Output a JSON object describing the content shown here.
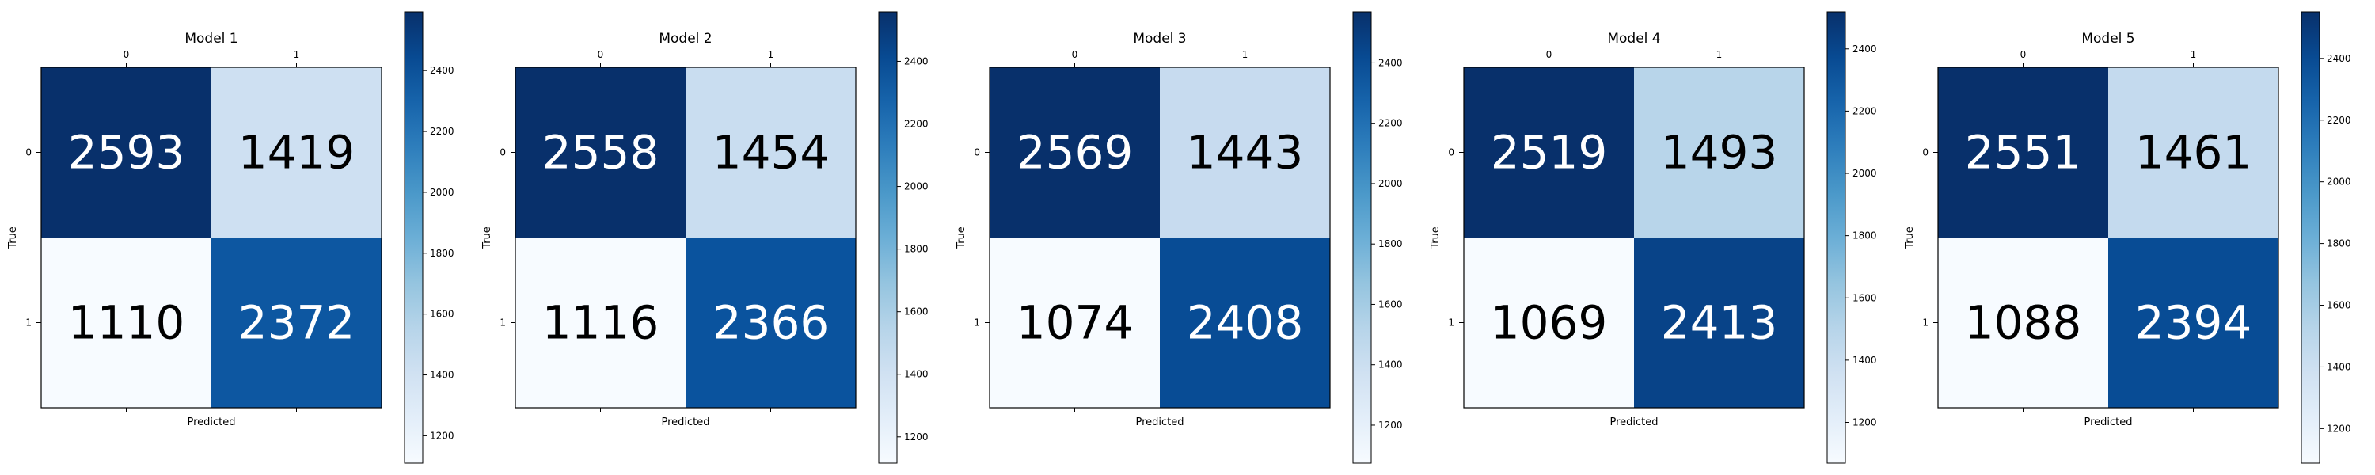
{
  "chart_data": [
    {
      "type": "heatmap",
      "title": "Model 1",
      "xlabel": "Predicted",
      "ylabel": "True",
      "x_tick_labels": [
        "0",
        "1"
      ],
      "y_tick_labels": [
        "0",
        "1"
      ],
      "values": [
        [
          2593,
          1419
        ],
        [
          1110,
          2372
        ]
      ],
      "colormap": "Blues",
      "colorbar_range": [
        1110,
        2593
      ],
      "colorbar_ticks": [
        1200,
        1400,
        1600,
        1800,
        2000,
        2200,
        2400
      ],
      "x_ticks_position": "top"
    },
    {
      "type": "heatmap",
      "title": "Model 2",
      "xlabel": "Predicted",
      "ylabel": "True",
      "x_tick_labels": [
        "0",
        "1"
      ],
      "y_tick_labels": [
        "0",
        "1"
      ],
      "values": [
        [
          2558,
          1454
        ],
        [
          1116,
          2366
        ]
      ],
      "colormap": "Blues",
      "colorbar_range": [
        1116,
        2558
      ],
      "colorbar_ticks": [
        1200,
        1400,
        1600,
        1800,
        2000,
        2200,
        2400
      ],
      "x_ticks_position": "top"
    },
    {
      "type": "heatmap",
      "title": "Model 3",
      "xlabel": "Predicted",
      "ylabel": "True",
      "x_tick_labels": [
        "0",
        "1"
      ],
      "y_tick_labels": [
        "0",
        "1"
      ],
      "values": [
        [
          2569,
          1443
        ],
        [
          1074,
          2408
        ]
      ],
      "colormap": "Blues",
      "colorbar_range": [
        1074,
        2569
      ],
      "colorbar_ticks": [
        1200,
        1400,
        1600,
        1800,
        2000,
        2200,
        2400
      ],
      "x_ticks_position": "top"
    },
    {
      "type": "heatmap",
      "title": "Model 4",
      "xlabel": "Predicted",
      "ylabel": "True",
      "x_tick_labels": [
        "0",
        "1"
      ],
      "y_tick_labels": [
        "0",
        "1"
      ],
      "values": [
        [
          2519,
          1493
        ],
        [
          1069,
          2413
        ]
      ],
      "colormap": "Blues",
      "colorbar_range": [
        1069,
        2519
      ],
      "colorbar_ticks": [
        1200,
        1400,
        1600,
        1800,
        2000,
        2200,
        2400
      ],
      "x_ticks_position": "top"
    },
    {
      "type": "heatmap",
      "title": "Model 5",
      "xlabel": "Predicted",
      "ylabel": "True",
      "x_tick_labels": [
        "0",
        "1"
      ],
      "y_tick_labels": [
        "0",
        "1"
      ],
      "values": [
        [
          2551,
          1461
        ],
        [
          1088,
          2394
        ]
      ],
      "colormap": "Blues",
      "colorbar_range": [
        1088,
        2551
      ],
      "colorbar_ticks": [
        1200,
        1400,
        1600,
        1800,
        2000,
        2200,
        2400
      ],
      "x_ticks_position": "top"
    }
  ],
  "colors": {
    "blues_light": "#f7fbff",
    "blues_dark": "#08306b",
    "text_light": "#ffffff",
    "text_dark": "#000000",
    "axis": "#000000"
  }
}
